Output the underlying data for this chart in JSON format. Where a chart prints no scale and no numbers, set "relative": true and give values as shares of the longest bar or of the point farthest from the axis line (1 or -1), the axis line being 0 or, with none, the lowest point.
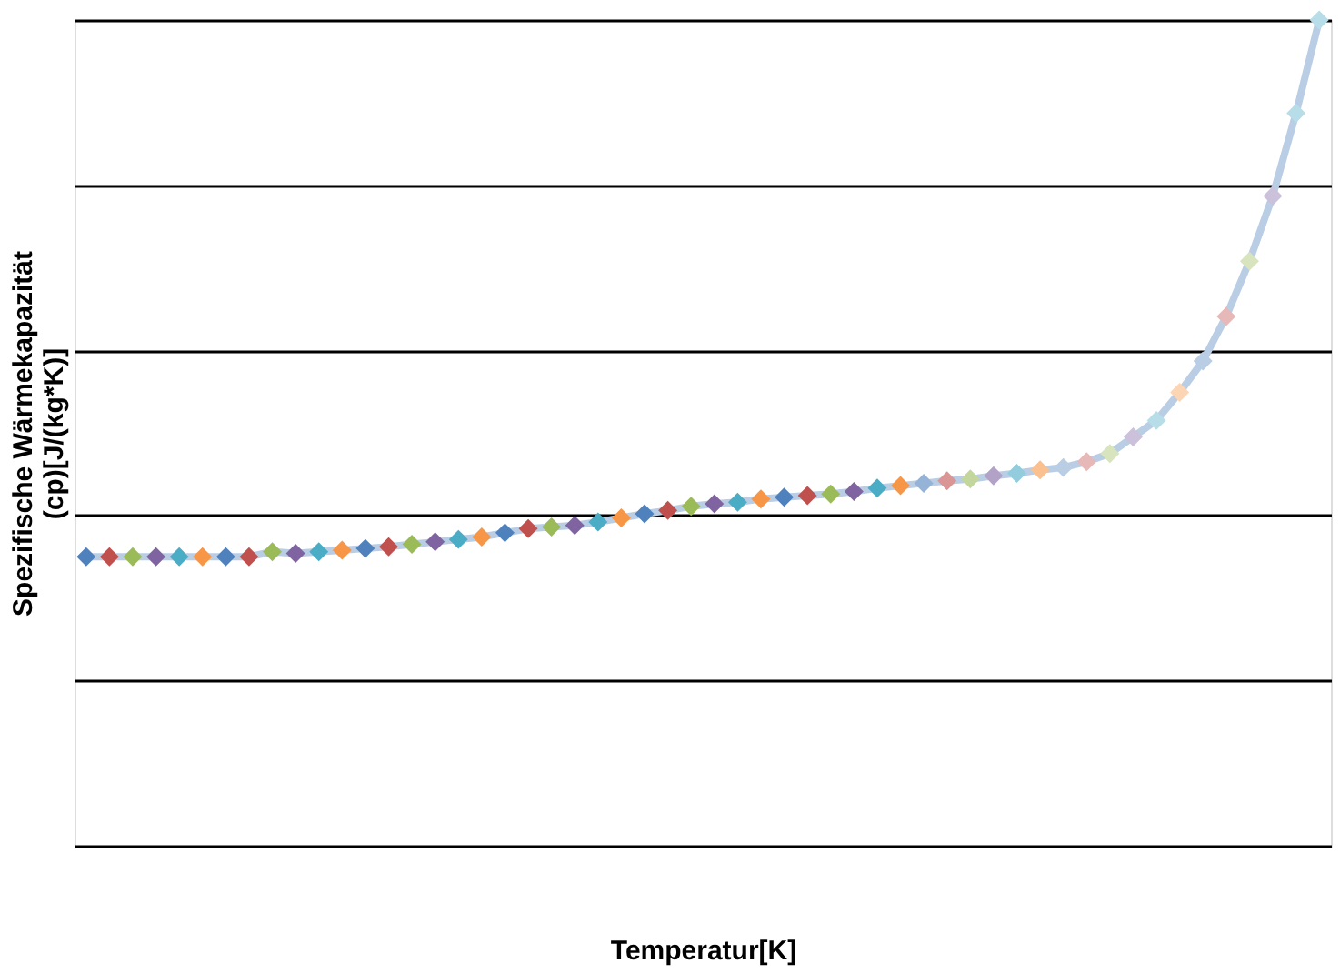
{
  "chart_data": {
    "type": "line",
    "relative": true,
    "xlabel": "Temperatur[K]",
    "ylabel": "Spezifische Wärmekapazität\n(cp)[J/(kg*K)]",
    "grid": "y",
    "marker": "diamond",
    "line_style": "solid",
    "tick_labels": false,
    "categories": [
      null,
      null,
      null,
      null,
      null,
      null,
      null,
      null,
      null,
      null,
      null,
      null,
      null,
      null,
      null,
      null,
      null,
      null,
      null,
      null,
      null,
      null,
      null,
      null,
      null,
      null,
      null,
      null,
      null,
      null,
      null,
      null,
      null,
      null,
      null,
      null,
      null,
      null,
      null,
      null,
      null,
      null,
      null,
      null,
      null,
      null,
      null,
      null,
      null,
      null,
      null,
      null,
      null,
      null
    ],
    "series": [
      {
        "color": "#b9cde5",
        "values": [
          0.35,
          0.35,
          0.35,
          0.35,
          0.35,
          0.35,
          0.35,
          0.35,
          0.356,
          0.354,
          0.356,
          0.358,
          0.36,
          0.362,
          0.365,
          0.368,
          0.371,
          0.374,
          0.379,
          0.384,
          0.386,
          0.388,
          0.392,
          0.397,
          0.402,
          0.406,
          0.411,
          0.414,
          0.416,
          0.42,
          0.422,
          0.424,
          0.426,
          0.429,
          0.433,
          0.436,
          0.439,
          0.442,
          0.444,
          0.448,
          0.451,
          0.455,
          0.458,
          0.465,
          0.475,
          0.495,
          0.515,
          0.549,
          0.587,
          0.641,
          0.708,
          0.787,
          0.887,
          1
        ],
        "colors": [
          "#4f81bd",
          "#c0504d",
          "#9bbb59",
          "#8064a2",
          "#4bacc6",
          "#f79646",
          "#4f81bd",
          "#c0504d",
          "#9bbb59",
          "#8064a2",
          "#4bacc6",
          "#f79646",
          "#4f81bd",
          "#c0504d",
          "#9bbb59",
          "#8064a2",
          "#4bacc6",
          "#f79646",
          "#4f81bd",
          "#c0504d",
          "#9bbb59",
          "#8064a2",
          "#4bacc6",
          "#f79646",
          "#4f81bd",
          "#c0504d",
          "#9bbb59",
          "#8064a2",
          "#4bacc6",
          "#f79646",
          "#4f81bd",
          "#c0504d",
          "#9bbb59",
          "#8064a2",
          "#4bacc6",
          "#f79646",
          "#95b3d7",
          "#d99694",
          "#c3d69b",
          "#b3a2c7",
          "#93cddd",
          "#fac090",
          "#b9cde5",
          "#e6b9b8",
          "#d7e4bd",
          "#ccc1da",
          "#b7dee8",
          "#fcd5b5",
          "#b9cde5",
          "#e6b9b8",
          "#d7e4bd",
          "#ccc1da",
          "#b7dee8",
          "#b7dee8"
        ]
      }
    ]
  }
}
